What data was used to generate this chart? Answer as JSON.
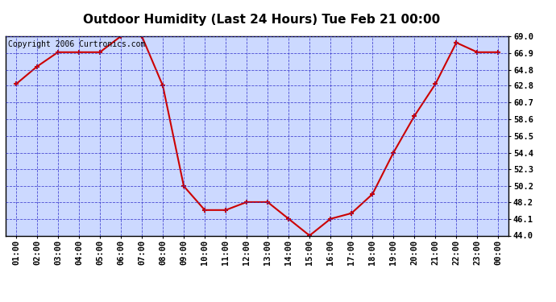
{
  "title": "Outdoor Humidity (Last 24 Hours) Tue Feb 21 00:00",
  "copyright": "Copyright 2006 Curtronics.com",
  "x_labels": [
    "01:00",
    "02:00",
    "03:00",
    "04:00",
    "05:00",
    "06:00",
    "07:00",
    "08:00",
    "09:00",
    "10:00",
    "11:00",
    "12:00",
    "13:00",
    "14:00",
    "15:00",
    "16:00",
    "17:00",
    "18:00",
    "19:00",
    "20:00",
    "21:00",
    "22:00",
    "23:00",
    "00:00"
  ],
  "y_values": [
    63.0,
    65.2,
    67.0,
    67.0,
    67.0,
    69.0,
    69.0,
    62.8,
    50.2,
    47.2,
    47.2,
    48.2,
    48.2,
    46.1,
    44.0,
    46.1,
    46.8,
    49.2,
    54.4,
    59.0,
    63.0,
    68.2,
    67.0,
    67.0
  ],
  "line_color": "#cc0000",
  "marker_color": "#cc0000",
  "plot_bg_color": "#ccd9ff",
  "grid_color": "#3333cc",
  "title_color": "#000000",
  "border_color": "#000000",
  "yticks": [
    44.0,
    46.1,
    48.2,
    50.2,
    52.3,
    54.4,
    56.5,
    58.6,
    60.7,
    62.8,
    64.8,
    66.9,
    69.0
  ],
  "ymin": 44.0,
  "ymax": 69.0,
  "title_fontsize": 11,
  "copyright_fontsize": 7,
  "tick_fontsize": 7.5,
  "fig_bg_color": "#ffffff"
}
